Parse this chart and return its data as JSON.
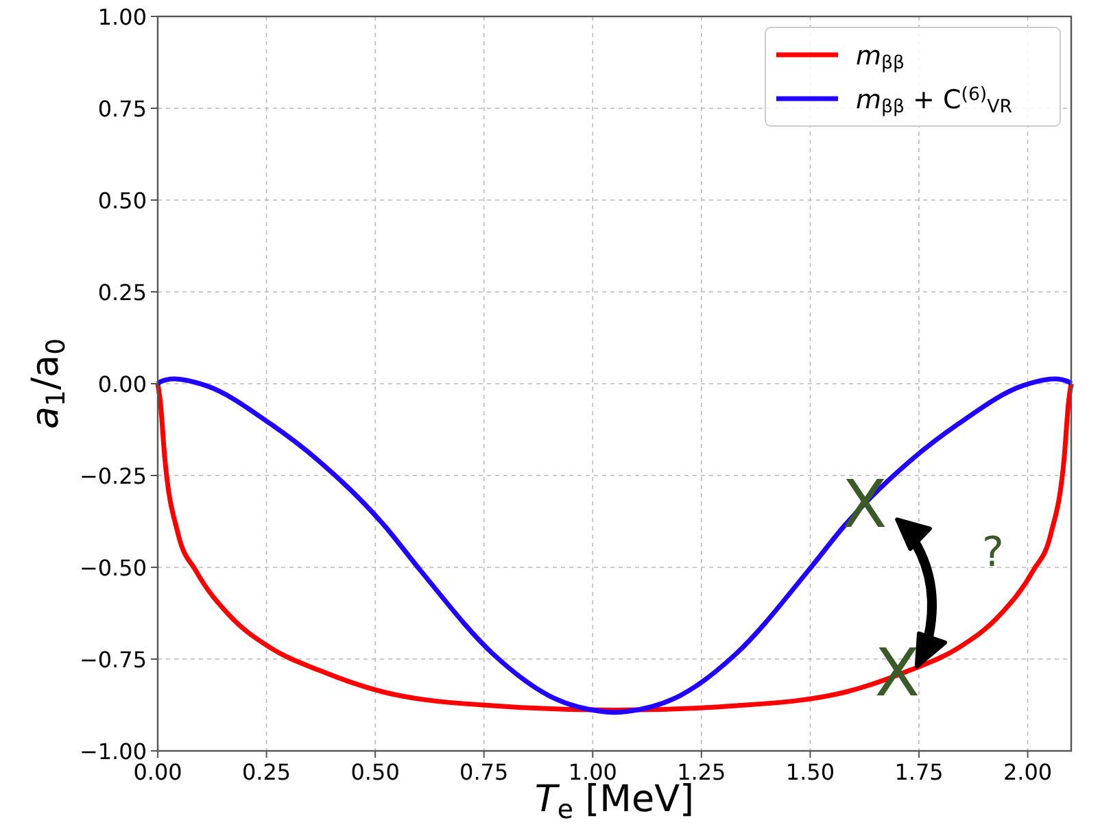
{
  "chart_data": {
    "type": "line",
    "xlabel": "T$_{e}$ [MeV]",
    "ylabel": "a$_{1}$/a$_{0}$",
    "xlim": [
      0,
      2.1
    ],
    "ylim": [
      -1,
      1
    ],
    "xticks": [
      {
        "value": 0,
        "label": "0.00"
      },
      {
        "value": 0.25,
        "label": "0.25"
      },
      {
        "value": 0.5,
        "label": "0.50"
      },
      {
        "value": 0.75,
        "label": "0.75"
      },
      {
        "value": 1,
        "label": "1.00"
      },
      {
        "value": 1.25,
        "label": "1.25"
      },
      {
        "value": 1.5,
        "label": "1.50"
      },
      {
        "value": 1.75,
        "label": "1.75"
      },
      {
        "value": 2,
        "label": "2.00"
      }
    ],
    "yticks": [
      {
        "value": -1,
        "label": "−1.00"
      },
      {
        "value": -0.75,
        "label": "−0.75"
      },
      {
        "value": -0.5,
        "label": "−0.50"
      },
      {
        "value": -0.25,
        "label": "−0.25"
      },
      {
        "value": 0,
        "label": "0.00"
      },
      {
        "value": 0.25,
        "label": "0.25"
      },
      {
        "value": 0.5,
        "label": "0.50"
      },
      {
        "value": 0.75,
        "label": "0.75"
      },
      {
        "value": 1,
        "label": "1.00"
      }
    ],
    "grid": true,
    "legend": "top right",
    "line_style": "solid",
    "marker": "none",
    "series": [
      {
        "name": "m$_{ββ}$",
        "color": "#ff0000",
        "x": [
          0,
          0.006,
          0.016,
          0.047,
          0.088,
          0.164,
          0.26,
          0.37,
          0.52,
          0.77,
          1.05,
          1.33,
          1.58,
          1.73,
          1.84,
          1.936,
          2.012,
          2.053,
          2.084,
          2.094,
          2.1
        ],
        "values": [
          0,
          -0.05,
          -0.2,
          -0.41,
          -0.51,
          -0.63,
          -0.72,
          -0.78,
          -0.84,
          -0.877,
          -0.889,
          -0.877,
          -0.84,
          -0.78,
          -0.72,
          -0.63,
          -0.51,
          -0.41,
          -0.2,
          -0.05,
          0
        ]
      },
      {
        "name": "m$_{ββ}$ + C$^{(6)}$$_{VR}$",
        "color": "#2200ff",
        "x": [
          0,
          0.006,
          0.037,
          0.11,
          0.26,
          0.37,
          0.52,
          0.605,
          0.77,
          0.9,
          1.025,
          1.05,
          1.075,
          1.2,
          1.33,
          1.495,
          1.58,
          1.73,
          1.84,
          1.99,
          2.063,
          2.094,
          2.1
        ],
        "values": [
          0,
          0.005,
          0.013,
          -0.005,
          -0.11,
          -0.21,
          -0.385,
          -0.51,
          -0.735,
          -0.85,
          -0.893,
          -0.895,
          -0.893,
          -0.85,
          -0.735,
          -0.51,
          -0.385,
          -0.21,
          -0.11,
          -0.005,
          0.013,
          0.005,
          0
        ]
      }
    ],
    "annotations": [
      {
        "text": "X",
        "x": 1.625,
        "y": -0.33
      },
      {
        "text": "X",
        "x": 1.7,
        "y": -0.79
      },
      "?"
    ]
  }
}
